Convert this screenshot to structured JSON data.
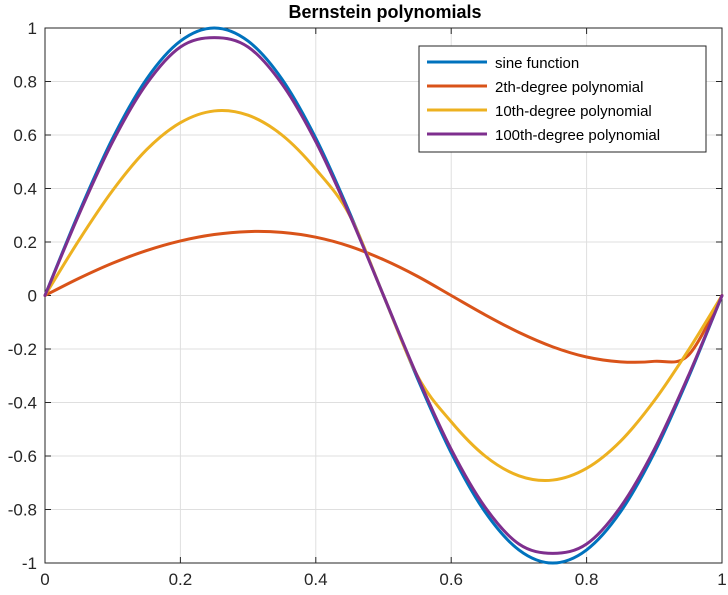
{
  "chart_data": {
    "type": "line",
    "title": "Bernstein polynomials",
    "xlabel": "",
    "ylabel": "",
    "xlim": [
      0,
      1
    ],
    "ylim": [
      -1,
      1
    ],
    "xticks": [
      "0",
      "0.2",
      "0.4",
      "0.6",
      "0.8",
      "1"
    ],
    "xtick_values": [
      0,
      0.2,
      0.4,
      0.6,
      0.8,
      1
    ],
    "yticks": [
      "-1",
      "-0.8",
      "-0.6",
      "-0.4",
      "-0.2",
      "0",
      "0.2",
      "0.4",
      "0.6",
      "0.8",
      "1"
    ],
    "ytick_values": [
      -1,
      -0.8,
      -0.6,
      -0.4,
      -0.2,
      0,
      0.2,
      0.4,
      0.6,
      0.8,
      1
    ],
    "grid": true,
    "legend_position": "top-right",
    "x": [
      0,
      0.05,
      0.1,
      0.15,
      0.2,
      0.25,
      0.3,
      0.35,
      0.4,
      0.45,
      0.5,
      0.55,
      0.6,
      0.65,
      0.7,
      0.75,
      0.8,
      0.85,
      0.9,
      0.95,
      1
    ],
    "series": [
      {
        "name": "sine function",
        "color": "#0072BD",
        "values": [
          0,
          0.309,
          0.588,
          0.809,
          0.951,
          1.0,
          0.951,
          0.809,
          0.588,
          0.309,
          0,
          -0.309,
          -0.588,
          -0.809,
          -0.951,
          -1.0,
          -0.951,
          -0.809,
          -0.588,
          -0.309,
          0
        ]
      },
      {
        "name": "2th-degree polynomial",
        "color": "#D95319",
        "values": [
          0,
          0.064,
          0.121,
          0.168,
          0.204,
          0.228,
          0.239,
          0.236,
          0.218,
          0.184,
          0.134,
          0.072,
          0.0,
          -0.072,
          -0.138,
          -0.192,
          -0.23,
          -0.248,
          -0.246,
          -0.224,
          0
        ]
      },
      {
        "name": "10th-degree polynomial",
        "color": "#EDB120",
        "values": [
          0,
          0.206,
          0.393,
          0.545,
          0.646,
          0.69,
          0.674,
          0.6,
          0.472,
          0.3,
          0,
          -0.3,
          -0.472,
          -0.6,
          -0.674,
          -0.69,
          -0.646,
          -0.545,
          -0.393,
          -0.206,
          0
        ]
      },
      {
        "name": "100th-degree polynomial",
        "color": "#7E2F8E",
        "values": [
          0,
          0.302,
          0.575,
          0.791,
          0.929,
          0.964,
          0.929,
          0.791,
          0.575,
          0.302,
          0,
          -0.302,
          -0.575,
          -0.791,
          -0.929,
          -0.964,
          -0.929,
          -0.791,
          -0.575,
          -0.302,
          0
        ]
      }
    ]
  }
}
